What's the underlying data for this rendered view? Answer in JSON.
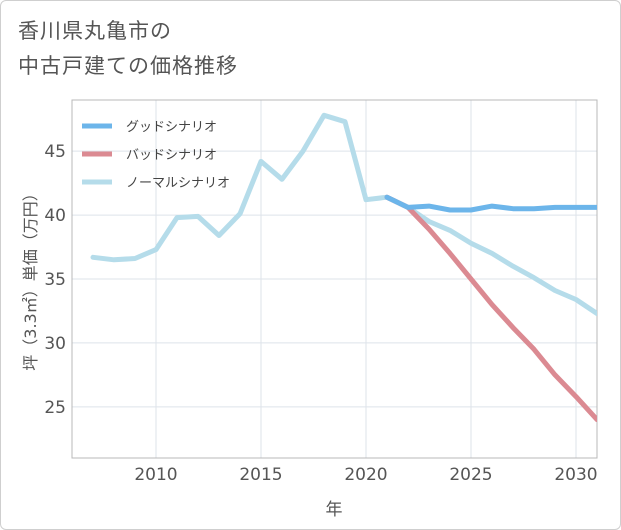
{
  "title": {
    "line1": "香川県丸亀市の",
    "line2": "中古戸建ての価格推移"
  },
  "chart_data": {
    "type": "line",
    "title": "香川県丸亀市の中古戸建ての価格推移",
    "xlabel": "年",
    "ylabel": "坪（3.3㎡）単価（万円）",
    "xlim": [
      2006,
      2031
    ],
    "ylim": [
      21,
      49
    ],
    "x_ticks": [
      2010,
      2015,
      2020,
      2025,
      2030
    ],
    "y_ticks": [
      25,
      30,
      35,
      40,
      45
    ],
    "grid": true,
    "legend_position": "top-left",
    "series": [
      {
        "name": "グッドシナリオ",
        "color": "#6cb5ea",
        "x": [
          2021,
          2022,
          2023,
          2024,
          2025,
          2026,
          2027,
          2028,
          2029,
          2030,
          2031
        ],
        "values": [
          41.4,
          40.6,
          40.7,
          40.4,
          40.4,
          40.7,
          40.5,
          40.5,
          40.6,
          40.6,
          40.6
        ]
      },
      {
        "name": "バッドシナリオ",
        "color": "#db8a92",
        "x": [
          2021,
          2022,
          2023,
          2024,
          2025,
          2026,
          2027,
          2028,
          2029,
          2030,
          2031
        ],
        "values": [
          41.4,
          40.6,
          38.9,
          37.0,
          35.0,
          33.0,
          31.2,
          29.5,
          27.5,
          25.8,
          24.0
        ]
      },
      {
        "name": "ノーマルシナリオ",
        "color": "#b5dcea",
        "x": [
          2007,
          2008,
          2009,
          2010,
          2011,
          2012,
          2013,
          2014,
          2015,
          2016,
          2017,
          2018,
          2019,
          2020,
          2021,
          2022,
          2023,
          2024,
          2025,
          2026,
          2027,
          2028,
          2029,
          2030,
          2031
        ],
        "values": [
          36.7,
          36.5,
          36.6,
          37.3,
          39.8,
          39.9,
          38.4,
          40.1,
          44.2,
          42.8,
          45.0,
          47.8,
          47.3,
          41.2,
          41.4,
          40.6,
          39.5,
          38.8,
          37.8,
          37.0,
          36.0,
          35.1,
          34.1,
          33.4,
          32.3
        ]
      }
    ]
  }
}
